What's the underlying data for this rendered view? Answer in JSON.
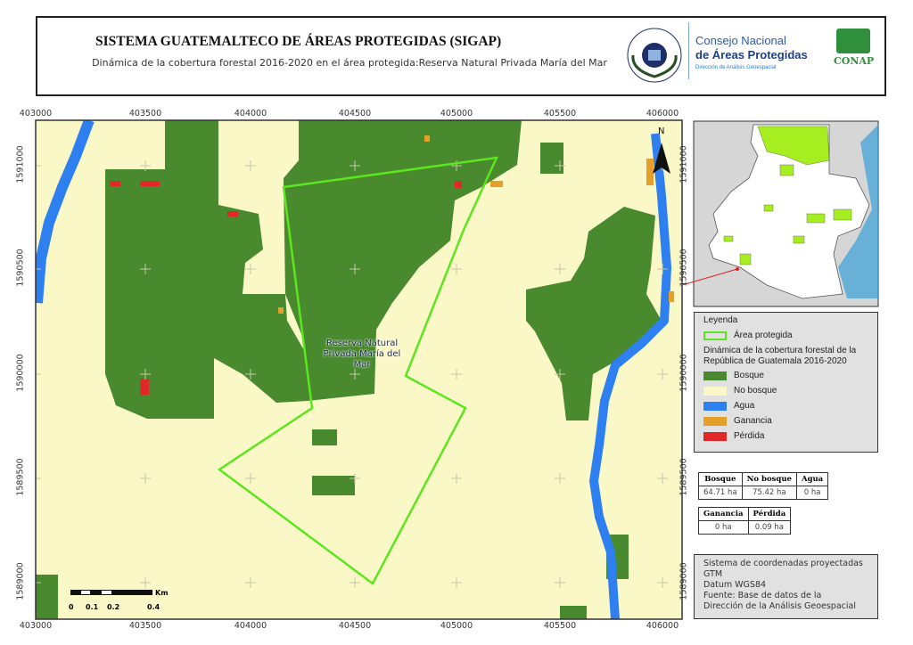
{
  "header": {
    "title": "SISTEMA GUATEMALTECO DE ÁREAS PROTEGIDAS  (SIGAP)",
    "subtitle": "Dinámica de la cobertura forestal 2016-2020 en el área protegida:Reserva Natural Privada María del Mar",
    "logos": {
      "seal_text_top": "GOBIERNO DE LA REPÚBLICA",
      "seal_text_bottom": "GUATEMALA",
      "council_line1": "Consejo Nacional",
      "council_line2": "de Áreas Protegidas",
      "council_line3": "Dirección de Análisis Geoespacial",
      "conap": "CONAP"
    }
  },
  "map": {
    "x_ticks": [
      "403000",
      "403500",
      "404000",
      "404500",
      "405000",
      "405500",
      "406000"
    ],
    "y_ticks": [
      "1591000",
      "1590500",
      "1590000",
      "1589500",
      "1589000"
    ],
    "area_label": "Reserva Natural Privada María del Mar",
    "north_label": "N",
    "scale": {
      "labels": [
        "0",
        "0.1",
        "0.2",
        "0.4"
      ],
      "unit": "Km"
    }
  },
  "legend": {
    "title": "Leyenda",
    "protected_area": "Área protegida",
    "section_title": "Dinámica de la cobertura forestal de la República de Guatemala 2016-2020",
    "items": [
      {
        "label": "Bosque",
        "color": "#4a8a2e"
      },
      {
        "label": "No bosque",
        "color": "#fbf8c8"
      },
      {
        "label": "Agua",
        "color": "#2e7ff0"
      },
      {
        "label": "Ganancia",
        "color": "#e5a02a"
      },
      {
        "label": "Pérdida",
        "color": "#e02828"
      }
    ],
    "outline_color": "#5ce61e"
  },
  "stats": {
    "table1": {
      "headers": [
        "Bosque",
        "No bosque",
        "Agua"
      ],
      "values": [
        "64.71 ha",
        "75.42 ha",
        "0 ha"
      ]
    },
    "table2": {
      "headers": [
        "Ganancia",
        "Pérdida"
      ],
      "values": [
        "0 ha",
        "0.09 ha"
      ]
    }
  },
  "info": {
    "lines": [
      "Sistema de coordenadas proyectadas",
      "GTM",
      "Datum WGS84",
      "Fuente: Base de datos de la",
      "Dirección de la Análisis Geoespacial"
    ]
  }
}
